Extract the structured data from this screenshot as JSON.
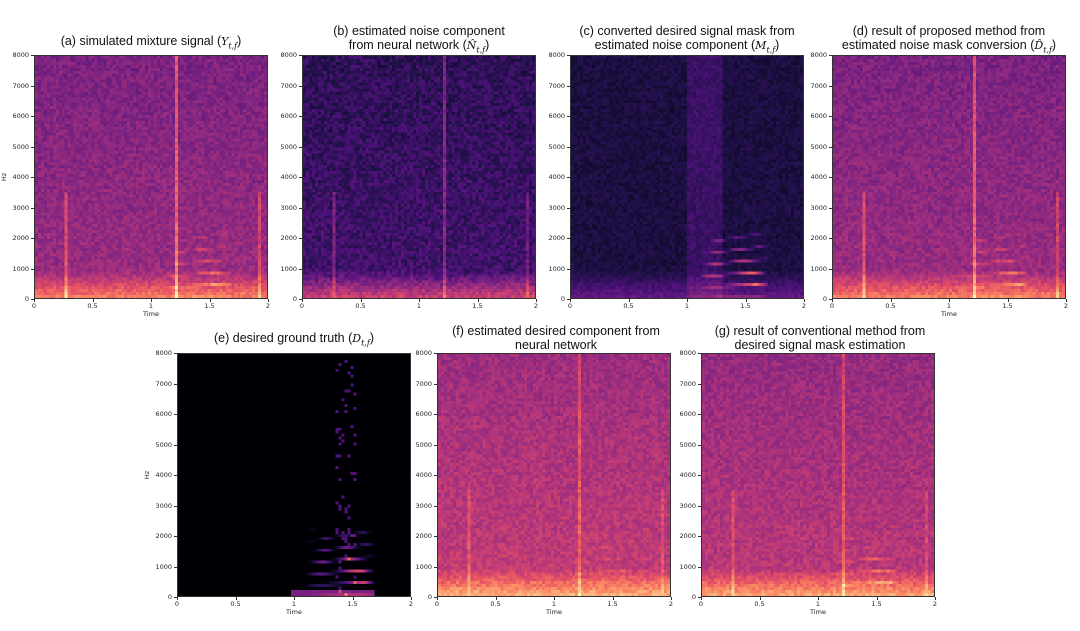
{
  "chart_data": [
    {
      "id": "a",
      "type": "heatmap",
      "kind": "mixture",
      "title": "(a) simulated mixture signal (",
      "symbol": "Y",
      "subscript": "t,f",
      "title_suffix": ")",
      "xlabel": "Time",
      "ylabel": "Hz",
      "x_ticks": [
        "0",
        "0.5",
        "1",
        "1.5",
        "2"
      ],
      "y_ticks": [
        "0",
        "1000",
        "2000",
        "3000",
        "4000",
        "5000",
        "6000",
        "7000",
        "8000"
      ],
      "xlim": [
        0,
        2
      ],
      "ylim": [
        0,
        8000
      ]
    },
    {
      "id": "b",
      "type": "heatmap",
      "kind": "noise",
      "title_line1": "(b) estimated noise component",
      "title": "from neural network (",
      "symbol": "N̂",
      "subscript": "t,f",
      "title_suffix": ")",
      "xlabel": "",
      "ylabel": "",
      "x_ticks": [
        "0",
        "0.5",
        "1",
        "1.5",
        "2"
      ],
      "y_ticks": [
        "0",
        "1000",
        "2000",
        "3000",
        "4000",
        "5000",
        "6000",
        "7000",
        "8000"
      ],
      "xlim": [
        0,
        2
      ],
      "ylim": [
        0,
        8000
      ]
    },
    {
      "id": "c",
      "type": "heatmap",
      "kind": "mask",
      "title_line1": "(c) converted desired signal mask from",
      "title": "estimated noise component (",
      "symbol": "M",
      "subscript": "t,f",
      "title_suffix": ")",
      "xlabel": "",
      "ylabel": "",
      "x_ticks": [
        "0",
        "0.5",
        "1",
        "1.5",
        "2"
      ],
      "y_ticks": [
        "0",
        "1000",
        "2000",
        "3000",
        "4000",
        "5000",
        "6000",
        "7000",
        "8000"
      ],
      "xlim": [
        0,
        2
      ],
      "ylim": [
        0,
        8000
      ]
    },
    {
      "id": "d",
      "type": "heatmap",
      "kind": "mixture",
      "title_line1": "(d) result of proposed method from",
      "title": "estimated noise mask conversion (",
      "symbol": "D̂",
      "subscript": "t,f",
      "title_suffix": ")",
      "xlabel": "Time",
      "ylabel": "",
      "x_ticks": [
        "0",
        "0.5",
        "1",
        "1.5",
        "2"
      ],
      "y_ticks": [
        "0",
        "1000",
        "2000",
        "3000",
        "4000",
        "5000",
        "6000",
        "7000",
        "8000"
      ],
      "xlim": [
        0,
        2
      ],
      "ylim": [
        0,
        8000
      ]
    },
    {
      "id": "e",
      "type": "heatmap",
      "kind": "truth",
      "title": "(e) desired ground truth (",
      "symbol": "D",
      "subscript": "t,f",
      "title_suffix": ")",
      "xlabel": "Time",
      "ylabel": "Hz",
      "x_ticks": [
        "0",
        "0.5",
        "1",
        "1.5",
        "2"
      ],
      "y_ticks": [
        "0",
        "1000",
        "2000",
        "3000",
        "4000",
        "5000",
        "6000",
        "7000",
        "8000"
      ],
      "xlim": [
        0,
        2
      ],
      "ylim": [
        0,
        8000
      ]
    },
    {
      "id": "f",
      "type": "heatmap",
      "kind": "bright",
      "title_line1": "(f) estimated desired component from",
      "title": "neural network",
      "symbol": "",
      "subscript": "",
      "title_suffix": "",
      "xlabel": "Time",
      "ylabel": "",
      "x_ticks": [
        "0",
        "0.5",
        "1",
        "1.5",
        "2"
      ],
      "y_ticks": [
        "0",
        "1000",
        "2000",
        "3000",
        "4000",
        "5000",
        "6000",
        "7000",
        "8000"
      ],
      "xlim": [
        0,
        2
      ],
      "ylim": [
        0,
        8000
      ]
    },
    {
      "id": "g",
      "type": "heatmap",
      "kind": "bright2",
      "title_line1": "(g) result of conventional method from",
      "title": "desired signal mask estimation",
      "symbol": "",
      "subscript": "",
      "title_suffix": "",
      "xlabel": "Time",
      "ylabel": "",
      "x_ticks": [
        "0",
        "0.5",
        "1",
        "1.5",
        "2"
      ],
      "y_ticks": [
        "0",
        "1000",
        "2000",
        "3000",
        "4000",
        "5000",
        "6000",
        "7000",
        "8000"
      ],
      "xlim": [
        0,
        2
      ],
      "ylim": [
        0,
        8000
      ]
    }
  ],
  "colors": {
    "colormap": [
      "#000004",
      "#1c1044",
      "#4f127b",
      "#812581",
      "#b5367a",
      "#e55064",
      "#fb8761",
      "#fec287",
      "#fcfdbf"
    ]
  }
}
